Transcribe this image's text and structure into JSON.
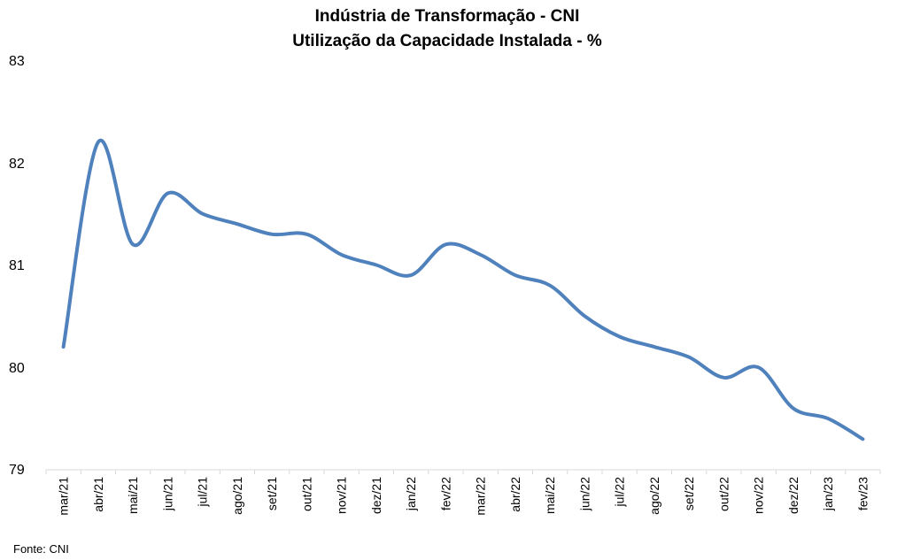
{
  "chart_data": {
    "type": "line",
    "title_lines": [
      "Indústria de Transformação - CNI",
      "Utilização da Capacidade Instalada - %"
    ],
    "categories": [
      "mar/21",
      "abr/21",
      "mai/21",
      "jun/21",
      "jul/21",
      "ago/21",
      "set/21",
      "out/21",
      "nov/21",
      "dez/21",
      "jan/22",
      "fev/22",
      "mar/22",
      "abr/22",
      "mai/22",
      "jun/22",
      "jul/22",
      "ago/22",
      "set/22",
      "out/22",
      "nov/22",
      "dez/22",
      "jan/23",
      "fev/23"
    ],
    "series": [
      {
        "values": [
          80.2,
          82.2,
          81.2,
          81.7,
          81.5,
          81.4,
          81.3,
          81.3,
          81.1,
          81.0,
          80.9,
          81.2,
          81.1,
          80.9,
          80.8,
          80.5,
          80.3,
          80.2,
          80.1,
          79.9,
          80.0,
          79.6,
          79.5,
          79.3
        ],
        "color": "#4F81BD"
      }
    ],
    "ylim": [
      79,
      83
    ],
    "yticks": [
      "79",
      "80",
      "81",
      "82",
      "83"
    ],
    "grid": false,
    "legend": "none",
    "source": "Fonte: CNI"
  }
}
